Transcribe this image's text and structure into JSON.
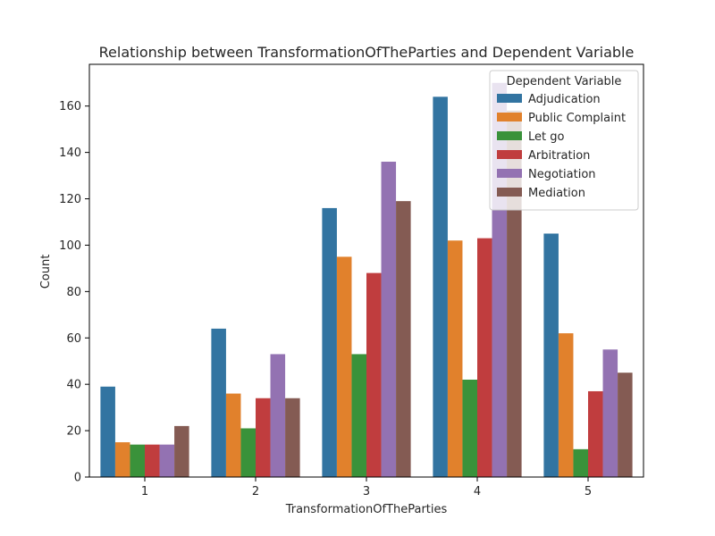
{
  "chart_data": {
    "type": "bar",
    "title": "Relationship between TransformationOfTheParties and Dependent Variable",
    "xlabel": "TransformationOfTheParties",
    "ylabel": "Count",
    "categories": [
      "1",
      "2",
      "3",
      "4",
      "5"
    ],
    "ylim": [
      0,
      178
    ],
    "yticks": [
      0,
      20,
      40,
      60,
      80,
      100,
      120,
      140,
      160
    ],
    "grid": false,
    "legend": {
      "title": "Dependent Variable",
      "placement": "top-right"
    },
    "series": [
      {
        "name": "Adjudication",
        "color": "#3274a1",
        "values": [
          39,
          64,
          116,
          164,
          105
        ]
      },
      {
        "name": "Public Complaint",
        "color": "#e1812c",
        "values": [
          15,
          36,
          95,
          102,
          62
        ]
      },
      {
        "name": "Let go",
        "color": "#3a923a",
        "values": [
          14,
          21,
          53,
          42,
          12
        ]
      },
      {
        "name": "Arbitration",
        "color": "#c03d3e",
        "values": [
          14,
          34,
          88,
          103,
          37
        ]
      },
      {
        "name": "Negotiation",
        "color": "#9372b2",
        "values": [
          14,
          53,
          136,
          170,
          55
        ]
      },
      {
        "name": "Mediation",
        "color": "#845b53",
        "values": [
          22,
          34,
          119,
          158,
          45
        ]
      }
    ]
  }
}
